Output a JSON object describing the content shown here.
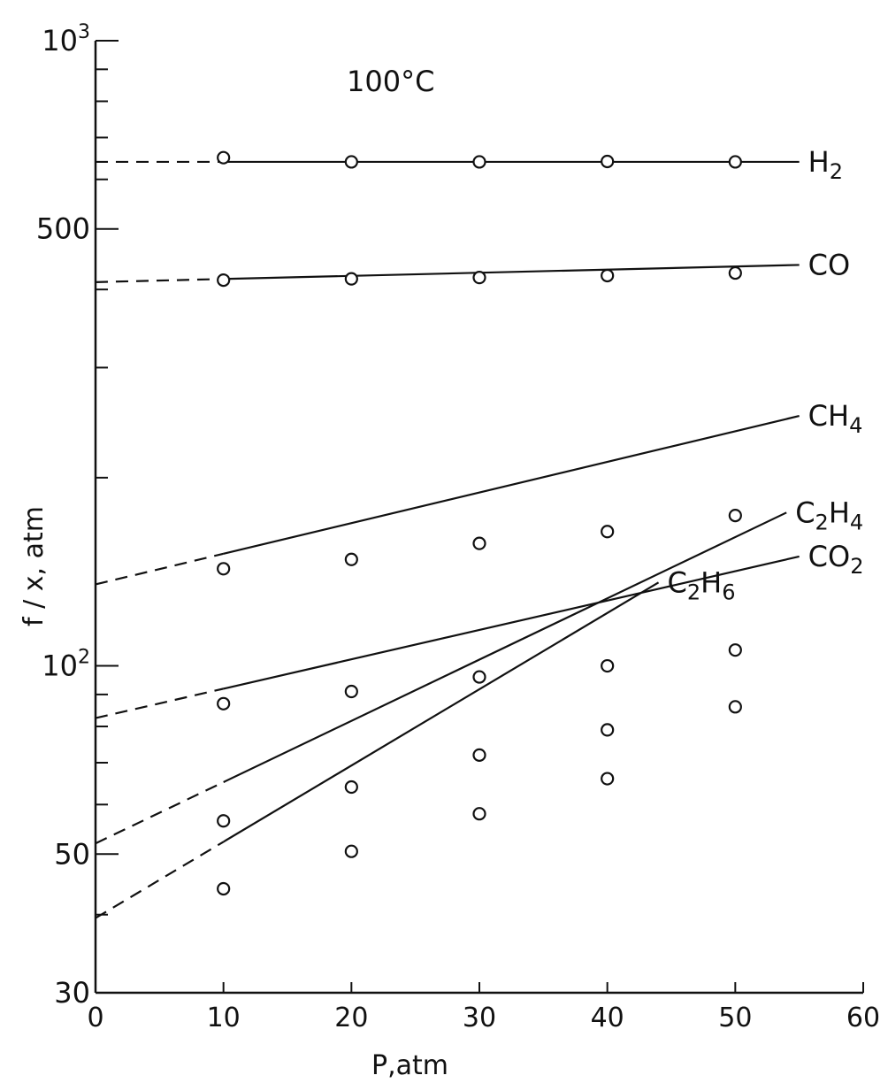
{
  "chart_data": {
    "type": "scatter",
    "annotation": "100°C",
    "xlabel": "P,atm",
    "ylabel": "f / x, atm",
    "xlim": [
      0,
      60
    ],
    "ylim": [
      30,
      1000
    ],
    "yscale": "log",
    "grid": false,
    "x_ticks": [
      {
        "value": 0,
        "label": "0"
      },
      {
        "value": 10,
        "label": "10"
      },
      {
        "value": 20,
        "label": "20"
      },
      {
        "value": 30,
        "label": "30"
      },
      {
        "value": 40,
        "label": "40"
      },
      {
        "value": 50,
        "label": "50"
      },
      {
        "value": 60,
        "label": "60"
      }
    ],
    "y_major_ticks": [
      {
        "value": 1000,
        "label": "10",
        "sup": "3"
      },
      {
        "value": 500,
        "label": "500",
        "sup": ""
      },
      {
        "value": 100,
        "label": "10",
        "sup": "2"
      },
      {
        "value": 50,
        "label": "50",
        "sup": ""
      },
      {
        "value": 30,
        "label": "30",
        "sup": ""
      }
    ],
    "y_minor_ticks": [
      900,
      800,
      700,
      600,
      400,
      300,
      200,
      90,
      80,
      70,
      60,
      40
    ],
    "series": [
      {
        "name": "H",
        "sub": "2",
        "points": [
          [
            10,
            650
          ],
          [
            20,
            640
          ],
          [
            30,
            640
          ],
          [
            40,
            641
          ],
          [
            50,
            640
          ]
        ],
        "fit": {
          "intercept": 640,
          "slope_per_atm": 0
        },
        "line_end_x": 55
      },
      {
        "name": "CO",
        "sub": "",
        "points": [
          [
            10,
            414
          ],
          [
            20,
            416
          ],
          [
            30,
            418
          ],
          [
            40,
            421
          ],
          [
            50,
            425
          ]
        ],
        "fit": {
          "intercept": 411,
          "slope_per_atm": 0.0005
        },
        "line_end_x": 55
      },
      {
        "name": "CH",
        "sub": "4",
        "points": [
          [
            10,
            143
          ],
          [
            20,
            148
          ],
          [
            30,
            157
          ],
          [
            40,
            164
          ],
          [
            50,
            174
          ]
        ],
        "fit": {
          "intercept": 135,
          "slope_per_atm": 0.0049
        },
        "line_end_x": 55
      },
      {
        "name": "CO",
        "sub": "2",
        "points": [
          [
            10,
            87
          ],
          [
            20,
            91
          ],
          [
            30,
            96
          ],
          [
            40,
            100
          ],
          [
            50,
            106
          ]
        ],
        "fit": {
          "intercept": 82.5,
          "slope_per_atm": 0.0047
        },
        "line_end_x": 55
      },
      {
        "name": "C",
        "sub": "2",
        "name2": "H",
        "sub2": "4",
        "points": [
          [
            10,
            56.5
          ],
          [
            20,
            64
          ],
          [
            30,
            72
          ],
          [
            40,
            79
          ],
          [
            50,
            86
          ]
        ],
        "fit": {
          "intercept": 52,
          "slope_per_atm": 0.0098
        },
        "line_end_x": 54
      },
      {
        "name": "C",
        "sub": "2",
        "name2": "H",
        "sub2": "6",
        "points": [
          [
            10,
            44
          ],
          [
            20,
            50.5
          ],
          [
            30,
            58
          ],
          [
            40,
            66
          ]
        ],
        "fit": {
          "intercept": 39.5,
          "slope_per_atm": 0.0122
        },
        "line_end_x": 44
      }
    ]
  }
}
